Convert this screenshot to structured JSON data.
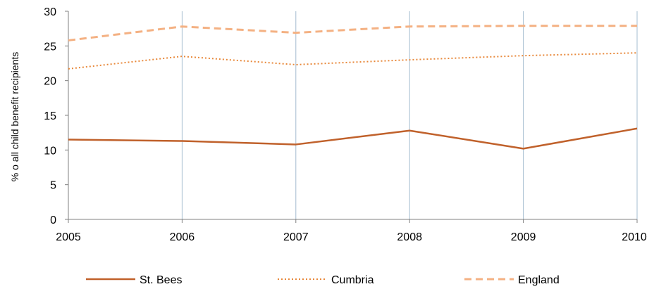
{
  "chart_data": {
    "type": "line",
    "categories": [
      "2005",
      "2006",
      "2007",
      "2008",
      "2009",
      "2010"
    ],
    "ylabel": "% o all child benefit recipients",
    "ylim": [
      0,
      30
    ],
    "yticks": [
      0,
      5,
      10,
      15,
      20,
      25,
      30
    ],
    "grid": "vertical",
    "legend_position": "bottom",
    "series": [
      {
        "name": "St. Bees",
        "values": [
          11.5,
          11.3,
          10.8,
          12.8,
          10.2,
          13.1
        ],
        "color": "#C0612B",
        "style": "solid"
      },
      {
        "name": "Cumbria",
        "values": [
          21.7,
          23.5,
          22.3,
          23.0,
          23.6,
          24.0
        ],
        "color": "#E8883A",
        "style": "dotted"
      },
      {
        "name": "England",
        "values": [
          25.8,
          27.8,
          26.9,
          27.8,
          27.9,
          27.9
        ],
        "color": "#F4B183",
        "style": "dashed"
      }
    ],
    "gridline_color": "#A6BDD0",
    "axis_color": "#808080"
  }
}
